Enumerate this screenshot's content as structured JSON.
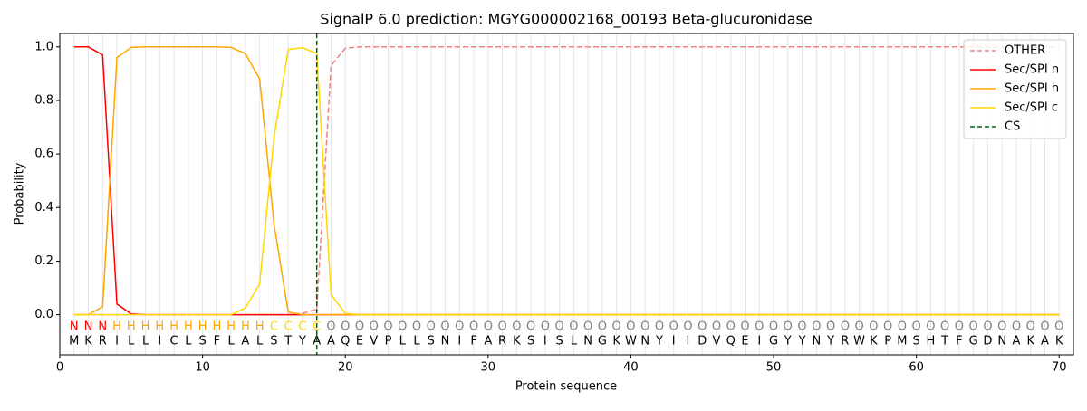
{
  "chart_data": {
    "type": "line",
    "title": "SignalP 6.0 prediction: MGYG000002168_00193 Beta-glucuronidase",
    "x_label": "Protein sequence",
    "y_label": "Probability",
    "xlim": [
      0,
      71
    ],
    "ylim": [
      -0.15,
      1.05
    ],
    "xticks": [
      0,
      10,
      20,
      30,
      40,
      50,
      60,
      70
    ],
    "yticks": [
      {
        "value": 0,
        "label": "0.0"
      },
      {
        "value": 0.2,
        "label": "0.2"
      },
      {
        "value": 0.4,
        "label": "0.4"
      },
      {
        "value": 0.6,
        "label": "0.6"
      },
      {
        "value": 0.8,
        "label": "0.8"
      },
      {
        "value": 1,
        "label": "1.0"
      }
    ],
    "grid": true,
    "legend_position": "upper right",
    "x": [
      1,
      2,
      3,
      4,
      5,
      6,
      7,
      8,
      9,
      10,
      11,
      12,
      13,
      14,
      15,
      16,
      17,
      18,
      19,
      20,
      21,
      22,
      23,
      24,
      25,
      26,
      27,
      28,
      29,
      30,
      31,
      32,
      33,
      34,
      35,
      36,
      37,
      38,
      39,
      40,
      41,
      42,
      43,
      44,
      45,
      46,
      47,
      48,
      49,
      50,
      51,
      52,
      53,
      54,
      55,
      56,
      57,
      58,
      59,
      60,
      61,
      62,
      63,
      64,
      65,
      66,
      67,
      68,
      69,
      70
    ],
    "residues": [
      "M",
      "K",
      "R",
      "I",
      "L",
      "L",
      "I",
      "C",
      "L",
      "S",
      "F",
      "L",
      "A",
      "L",
      "S",
      "T",
      "Y",
      "A",
      "A",
      "Q",
      "E",
      "V",
      "P",
      "L",
      "L",
      "S",
      "N",
      "I",
      "F",
      "A",
      "R",
      "K",
      "S",
      "I",
      "S",
      "L",
      "N",
      "G",
      "K",
      "W",
      "N",
      "Y",
      "I",
      "I",
      "D",
      "V",
      "Q",
      "E",
      "I",
      "G",
      "Y",
      "Y",
      "N",
      "Y",
      "R",
      "W",
      "K",
      "P",
      "M",
      "S",
      "H",
      "T",
      "F",
      "G",
      "D",
      "N",
      "A",
      "K",
      "A",
      "K"
    ],
    "region_labels": [
      "N",
      "N",
      "N",
      "H",
      "H",
      "H",
      "H",
      "H",
      "H",
      "H",
      "H",
      "H",
      "H",
      "H",
      "C",
      "C",
      "C",
      "C",
      "O",
      "O",
      "O",
      "O",
      "O",
      "O",
      "O",
      "O",
      "O",
      "O",
      "O",
      "O",
      "O",
      "O",
      "O",
      "O",
      "O",
      "O",
      "O",
      "O",
      "O",
      "O",
      "O",
      "O",
      "O",
      "O",
      "O",
      "O",
      "O",
      "O",
      "O",
      "O",
      "O",
      "O",
      "O",
      "O",
      "O",
      "O",
      "O",
      "O",
      "O",
      "O",
      "O",
      "O",
      "O",
      "O",
      "O",
      "O",
      "O",
      "O",
      "O",
      "O"
    ],
    "region_colors": {
      "N": "#ff0000",
      "H": "#ffa500",
      "C": "#ffd700",
      "O": "#808080"
    },
    "series": [
      {
        "name": "OTHER",
        "color": "#f08080",
        "dashed": true,
        "values": [
          0,
          0,
          0,
          0,
          0,
          0,
          0,
          0,
          0,
          0,
          0,
          0,
          0,
          0,
          0,
          0,
          0.005,
          0.02,
          0.93,
          0.995,
          1,
          1,
          1,
          1,
          1,
          1,
          1,
          1,
          1,
          1,
          1,
          1,
          1,
          1,
          1,
          1,
          1,
          1,
          1,
          1,
          1,
          1,
          1,
          1,
          1,
          1,
          1,
          1,
          1,
          1,
          1,
          1,
          1,
          1,
          1,
          1,
          1,
          1,
          1,
          1,
          1,
          1,
          1,
          1,
          1,
          1,
          1,
          1,
          1,
          1
        ]
      },
      {
        "name": "Sec/SPI n",
        "color": "#ff0000",
        "dashed": false,
        "values": [
          1,
          1,
          0.97,
          0.04,
          0.003,
          0,
          0,
          0,
          0,
          0,
          0,
          0,
          0,
          0,
          0,
          0,
          0,
          0,
          0,
          0,
          0,
          0,
          0,
          0,
          0,
          0,
          0,
          0,
          0,
          0,
          0,
          0,
          0,
          0,
          0,
          0,
          0,
          0,
          0,
          0,
          0,
          0,
          0,
          0,
          0,
          0,
          0,
          0,
          0,
          0,
          0,
          0,
          0,
          0,
          0,
          0,
          0,
          0,
          0,
          0,
          0,
          0,
          0,
          0,
          0,
          0,
          0,
          0,
          0,
          0
        ]
      },
      {
        "name": "Sec/SPI h",
        "color": "#ffa500",
        "dashed": false,
        "values": [
          0,
          0,
          0.03,
          0.96,
          0.998,
          1,
          1,
          1,
          1,
          1,
          1,
          0.998,
          0.975,
          0.88,
          0.34,
          0.01,
          0,
          0,
          0,
          0,
          0,
          0,
          0,
          0,
          0,
          0,
          0,
          0,
          0,
          0,
          0,
          0,
          0,
          0,
          0,
          0,
          0,
          0,
          0,
          0,
          0,
          0,
          0,
          0,
          0,
          0,
          0,
          0,
          0,
          0,
          0,
          0,
          0,
          0,
          0,
          0,
          0,
          0,
          0,
          0,
          0,
          0,
          0,
          0,
          0,
          0,
          0,
          0,
          0,
          0
        ]
      },
      {
        "name": "Sec/SPI c",
        "color": "#ffd700",
        "dashed": false,
        "values": [
          0,
          0,
          0,
          0,
          0,
          0,
          0,
          0,
          0,
          0,
          0,
          0,
          0.025,
          0.115,
          0.66,
          0.99,
          0.997,
          0.975,
          0.075,
          0.005,
          0,
          0,
          0,
          0,
          0,
          0,
          0,
          0,
          0,
          0,
          0,
          0,
          0,
          0,
          0,
          0,
          0,
          0,
          0,
          0,
          0,
          0,
          0,
          0,
          0,
          0,
          0,
          0,
          0,
          0,
          0,
          0,
          0,
          0,
          0,
          0,
          0,
          0,
          0,
          0,
          0,
          0,
          0,
          0,
          0,
          0,
          0,
          0,
          0,
          0
        ]
      }
    ],
    "cleavage_site": {
      "name": "CS",
      "x": 18,
      "color": "#006400"
    }
  }
}
